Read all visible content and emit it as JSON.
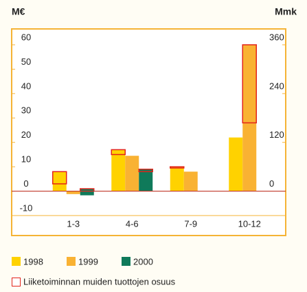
{
  "chart_data": {
    "type": "bar",
    "y_unit": "M€",
    "y2_unit": "Mmk",
    "categories": [
      "1-3",
      "4-6",
      "7-9",
      "10-12"
    ],
    "series": [
      {
        "name": "1998",
        "color": "#ffd200",
        "values": [
          3,
          15,
          9.5,
          22
        ]
      },
      {
        "name": "1999",
        "color": "#f9b233",
        "values": [
          -1.2,
          14.5,
          8,
          28
        ]
      },
      {
        "name": "2000",
        "color": "#0f7a5a",
        "values": [
          -1.7,
          8,
          null,
          null
        ]
      }
    ],
    "overlay": {
      "name": "Liiketoiminnan muiden tuottojen osuus",
      "color": "#e2231a",
      "values": [
        [
          5,
          2,
          0.5,
          0
        ],
        [
          0,
          0,
          0,
          32
        ],
        [
          1,
          1,
          null,
          null
        ]
      ]
    },
    "ylim": [
      -10,
      66.5
    ],
    "yticks": [
      -10,
      0,
      10,
      20,
      30,
      40,
      50,
      60
    ],
    "y2lim": [
      -60,
      399
    ],
    "y2ticks": [
      0,
      120,
      240,
      360
    ],
    "grid": false
  }
}
